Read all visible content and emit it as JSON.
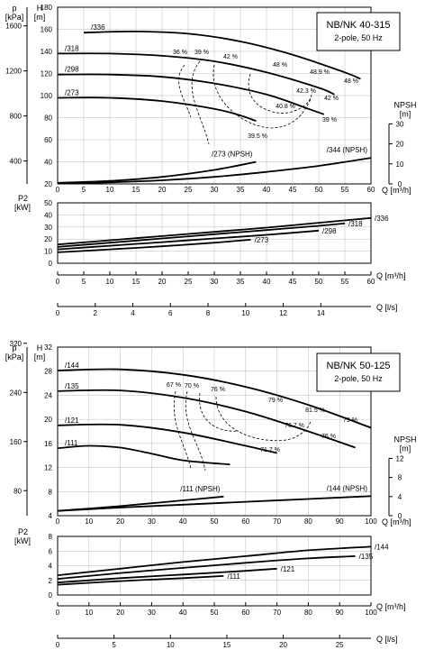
{
  "chart_data": [
    {
      "type": "line",
      "title": "NB/NK 40-315",
      "subtitle": "2-pole, 50 Hz",
      "xlabel": "Q [m³/h]",
      "xlim": [
        0,
        60
      ],
      "xticks": [
        0,
        5,
        10,
        15,
        20,
        25,
        30,
        35,
        40,
        45,
        50,
        55,
        60
      ],
      "x2label": "Q [l/s]",
      "x2lim": [
        0,
        16.667
      ],
      "x2ticks": [
        0,
        2,
        4,
        6,
        8,
        10,
        12,
        14
      ],
      "head": {
        "ylabel": "H",
        "yunit": "[m]",
        "ylim": [
          20,
          180
        ],
        "yticks": [
          20,
          40,
          60,
          80,
          100,
          120,
          140,
          160,
          180
        ],
        "p_label": "p",
        "p_unit": "[kPa]",
        "p_ticks": [
          400,
          800,
          1200,
          1600
        ],
        "npsh_label": "NPSH",
        "npsh_unit": "[m]",
        "npsh_ticks": [
          0,
          10,
          20,
          30
        ],
        "series": [
          {
            "name": "/336",
            "x": [
              5,
              15,
              25,
              35,
              45,
              55,
              58
            ],
            "y": [
              157,
              158,
              156,
              149,
              137,
              121,
              115
            ]
          },
          {
            "name": "/318",
            "x": [
              0,
              10,
              20,
              30,
              40,
              50,
              53
            ],
            "y": [
              138,
              138,
              136,
              131,
              121,
              107,
              101
            ]
          },
          {
            "name": "/298",
            "x": [
              0,
              10,
              20,
              30,
              40,
              48,
              51
            ],
            "y": [
              119,
              119,
              117,
              111,
              101,
              88,
              83
            ]
          },
          {
            "name": "/273",
            "x": [
              0,
              10,
              20,
              30,
              35,
              38
            ],
            "y": [
              98,
              98,
              95,
              88,
              82,
              77
            ]
          }
        ],
        "npsh_series": [
          {
            "name": "/273 (NPSH)",
            "x": [
              0,
              10,
              20,
              30,
              38
            ],
            "y": [
              0.5,
              1.5,
              3.5,
              7,
              11
            ]
          },
          {
            "name": "/344 (NPSH)",
            "x": [
              0,
              10,
              20,
              30,
              40,
              50,
              60
            ],
            "y": [
              0.3,
              0.8,
              1.8,
              3.5,
              6,
              9,
              13
            ]
          }
        ],
        "efficiency_labels": [
          "36 %",
          "39 %",
          "42 %",
          "48 %",
          "48.9 %",
          "48 %",
          "42.3 %",
          "42 %",
          "40.8 %",
          "39 %",
          "39.5 %"
        ]
      },
      "power": {
        "ylabel": "P2",
        "yunit": "[kW]",
        "ylim": [
          0,
          50
        ],
        "yticks": [
          0,
          10,
          20,
          30,
          40,
          50
        ],
        "series": [
          {
            "name": "/336",
            "x": [
              0,
              10,
              20,
              30,
              40,
              50,
              60
            ],
            "y": [
              15.5,
              19,
              22.5,
              26,
              29.5,
              33.5,
              37.5
            ]
          },
          {
            "name": "/318",
            "x": [
              0,
              10,
              20,
              30,
              40,
              50,
              55
            ],
            "y": [
              13.5,
              17,
              20.5,
              24,
              27.5,
              31,
              33
            ]
          },
          {
            "name": "/298",
            "x": [
              0,
              10,
              20,
              30,
              40,
              50
            ],
            "y": [
              11.5,
              14.5,
              17.5,
              20.5,
              23.5,
              27
            ]
          },
          {
            "name": "/273",
            "x": [
              0,
              10,
              20,
              30,
              37
            ],
            "y": [
              9,
              11.5,
              14,
              17,
              19.5
            ]
          }
        ]
      }
    },
    {
      "type": "line",
      "title": "NB/NK 50-125",
      "subtitle": "2-pole, 50 Hz",
      "xlabel": "Q [m³/h]",
      "xlim": [
        0,
        100
      ],
      "xticks": [
        0,
        10,
        20,
        30,
        40,
        50,
        60,
        70,
        80,
        90,
        100
      ],
      "x2label": "Q [l/s]",
      "x2lim": [
        0,
        27.778
      ],
      "x2ticks": [
        0,
        5,
        10,
        15,
        20,
        25
      ],
      "head": {
        "ylabel": "H",
        "yunit": "[m]",
        "ylim": [
          4,
          32
        ],
        "yticks": [
          4,
          8,
          12,
          16,
          20,
          24,
          28,
          32
        ],
        "p_label": "p",
        "p_unit": "[kPa]",
        "p_ticks": [
          80,
          160,
          240,
          320
        ],
        "npsh_label": "NPSH",
        "npsh_unit": "[m]",
        "npsh_ticks": [
          0,
          4,
          8,
          12
        ],
        "series": [
          {
            "name": "/144",
            "x": [
              0,
              20,
              40,
              60,
              80,
              100
            ],
            "y": [
              28.1,
              28.3,
              27.4,
              25.4,
              22.4,
              18.6
            ]
          },
          {
            "name": "/135",
            "x": [
              0,
              20,
              40,
              60,
              80,
              95
            ],
            "y": [
              24.7,
              24.8,
              23.6,
              21.3,
              18,
              15.3
            ]
          },
          {
            "name": "/121",
            "x": [
              0,
              20,
              40,
              60,
              70
            ],
            "y": [
              19,
              19.1,
              17.8,
              15.6,
              14.4
            ]
          },
          {
            "name": "/111",
            "x": [
              0,
              10,
              20,
              30,
              40,
              55
            ],
            "y": [
              15.2,
              15.6,
              15.3,
              14.3,
              13.2,
              12.5
            ]
          }
        ],
        "npsh_series": [
          {
            "name": "/111 (NPSH)",
            "x": [
              0,
              10,
              20,
              30,
              40,
              53
            ],
            "y": [
              1,
              1.5,
              2,
              2.6,
              3.2,
              4
            ]
          },
          {
            "name": "/144 (NPSH)",
            "x": [
              0,
              20,
              40,
              60,
              80,
              100
            ],
            "y": [
              1,
              1.7,
              2.3,
              2.9,
              3.5,
              4.1
            ]
          }
        ],
        "efficiency_labels": [
          "67 %",
          "70 %",
          "76 %",
          "79 %",
          "81.5 %",
          "79 %",
          "76.7 %",
          "76 %",
          "71.7 %"
        ]
      },
      "power": {
        "ylabel": "P2",
        "yunit": "[kW]",
        "ylim": [
          0,
          8
        ],
        "yticks": [
          0,
          2,
          4,
          6,
          8
        ],
        "series": [
          {
            "name": "/144",
            "x": [
              0,
              20,
              40,
              60,
              80,
              100
            ],
            "y": [
              2.7,
              3.6,
              4.5,
              5.3,
              6.1,
              6.6
            ]
          },
          {
            "name": "/135",
            "x": [
              0,
              20,
              40,
              60,
              80,
              95
            ],
            "y": [
              2.2,
              3,
              3.7,
              4.4,
              5,
              5.3
            ]
          },
          {
            "name": "/121",
            "x": [
              0,
              20,
              40,
              60,
              70
            ],
            "y": [
              1.7,
              2.3,
              2.8,
              3.3,
              3.6
            ]
          },
          {
            "name": "/111",
            "x": [
              0,
              20,
              40,
              53
            ],
            "y": [
              1.4,
              1.9,
              2.3,
              2.6
            ]
          }
        ]
      }
    }
  ]
}
